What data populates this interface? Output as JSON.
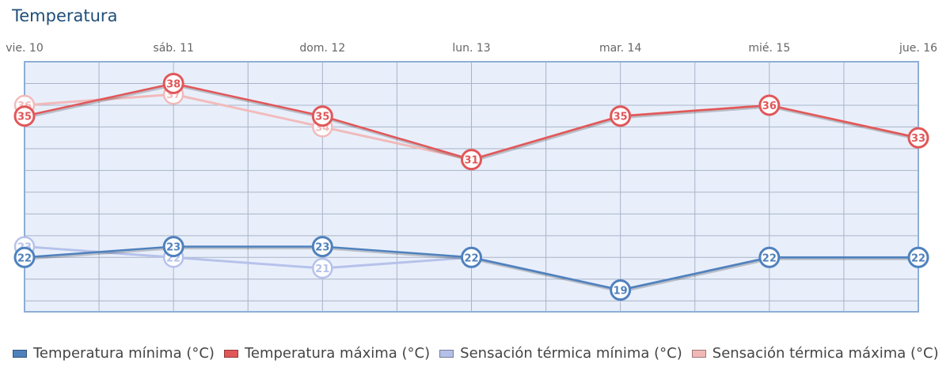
{
  "chart_data": {
    "type": "line",
    "title": "Temperatura",
    "categories": [
      "vie. 10",
      "sáb. 11",
      "dom. 12",
      "lun. 13",
      "mar. 14",
      "mié. 15",
      "jue. 16"
    ],
    "ylim": [
      17,
      40
    ],
    "grid": true,
    "legend_position": "bottom",
    "series": [
      {
        "name": "Temperatura mínima (°C)",
        "values": [
          22,
          23,
          23,
          22,
          19,
          22,
          22
        ],
        "color": "#4f81bd"
      },
      {
        "name": "Temperatura máxima (°C)",
        "values": [
          35,
          38,
          35,
          31,
          35,
          36,
          33
        ],
        "color": "#e15759"
      },
      {
        "name": "Sensación térmica mínima (°C)",
        "values": [
          23,
          22,
          21,
          22,
          19,
          22,
          22
        ],
        "color": "#b4c0ea"
      },
      {
        "name": "Sensación térmica máxima (°C)",
        "values": [
          36,
          37,
          34,
          31,
          35,
          36,
          33
        ],
        "color": "#f2b8b8"
      }
    ]
  }
}
